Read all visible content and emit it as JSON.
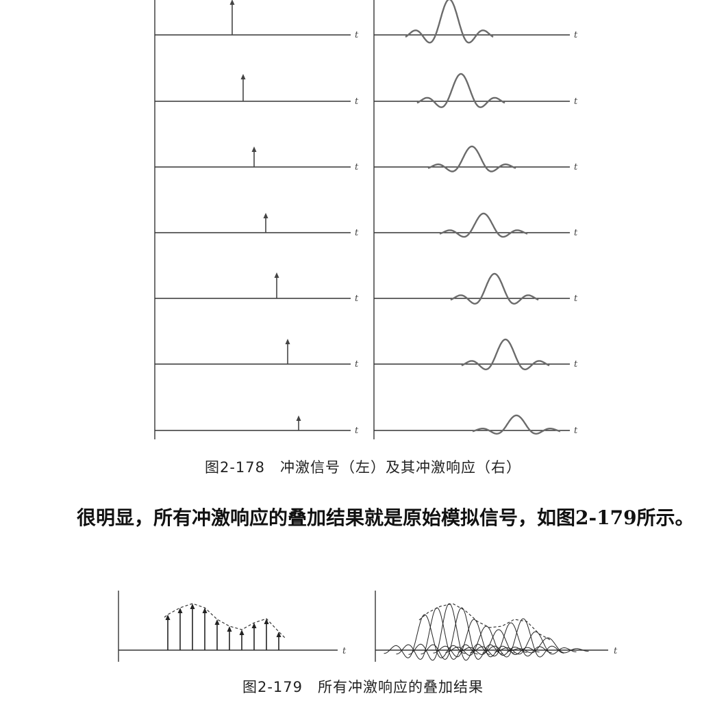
{
  "figure_178": {
    "caption": "图2-178　冲激信号（左）及其冲激响应（右）",
    "axis_label": "t",
    "panel_count": 7,
    "colors": {
      "axis": "#333333",
      "impulse": "#444444",
      "response": "#6b6b6b"
    }
  },
  "paragraph": {
    "text": "很明显，所有冲激响应的叠加结果就是原始模拟信号，如图2-179所示。"
  },
  "figure_179": {
    "caption": "图2-179　所有冲激响应的叠加结果",
    "axis_label": "t",
    "impulse_count": 11,
    "colors": {
      "axis": "#333333",
      "impulse": "#222222",
      "envelope": "#333333",
      "response": "#222222"
    }
  }
}
